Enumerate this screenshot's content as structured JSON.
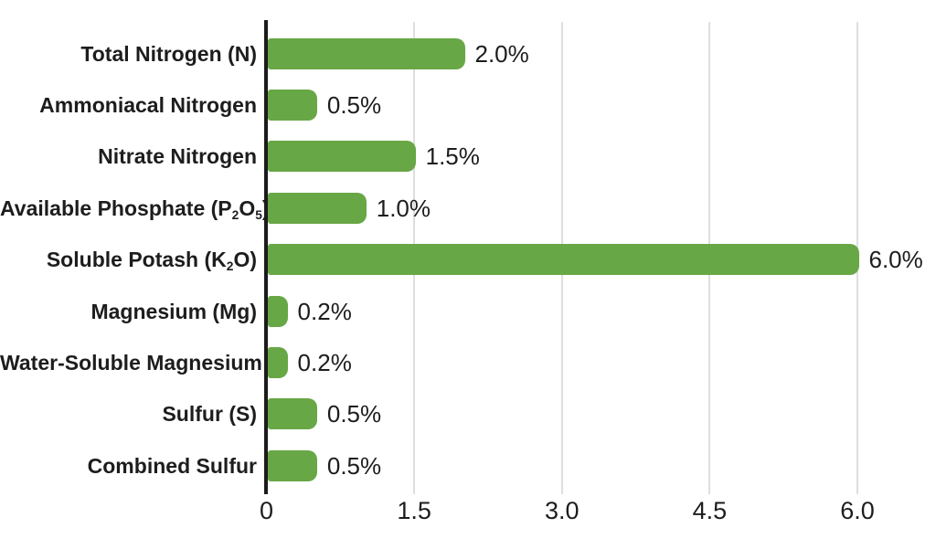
{
  "chart_data": {
    "type": "bar",
    "orientation": "horizontal",
    "title": "",
    "xlabel": "",
    "ylabel": "",
    "categories": [
      "Total Nitrogen (N)",
      "Ammoniacal Nitrogen",
      "Nitrate Nitrogen",
      "Available Phosphate (P₂O₅)",
      "Soluble Potash (K₂O)",
      "Magnesium (Mg)",
      "Water-Soluble Magnesium",
      "Sulfur (S)",
      "Combined Sulfur"
    ],
    "values": [
      2.0,
      0.5,
      1.5,
      1.0,
      6.0,
      0.2,
      0.2,
      0.5,
      0.5
    ],
    "value_labels": [
      "2.0%",
      "0.5%",
      "1.5%",
      "1.0%",
      "6.0%",
      "0.2%",
      "0.2%",
      "0.5%",
      "0.5%"
    ],
    "xlim": [
      0,
      6
    ],
    "x_ticks": [
      {
        "value": 0,
        "label": "0"
      },
      {
        "value": 1.5,
        "label": "1.5"
      },
      {
        "value": 3.0,
        "label": "3.0"
      },
      {
        "value": 4.5,
        "label": "4.5"
      },
      {
        "value": 6.0,
        "label": "6.0"
      }
    ],
    "grid": "vertical-gridlines-on",
    "legend": "none",
    "colors": {
      "bar": "#68a745",
      "axis": "#1c1c1c",
      "gridline": "#dedede",
      "text": "#1d1d1d",
      "background": "#ffffff"
    }
  }
}
